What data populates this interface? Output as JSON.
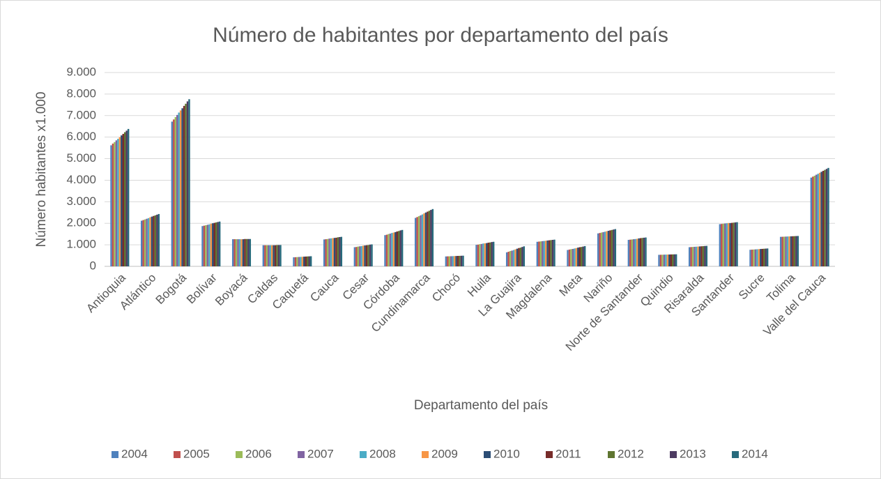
{
  "chart_data": {
    "type": "bar",
    "title": "Número de habitantes por departamento del país",
    "ylabel": "Número habitantes x1.000",
    "xlabel": "Departamento del país",
    "categories": [
      "Antioquia",
      "Atlántico",
      "Bogotá",
      "Bolívar",
      "Boyacá",
      "Caldas",
      "Caquetá",
      "Cauca",
      "Cesar",
      "Córdoba",
      "Cundinamarca",
      "Chocó",
      "Huila",
      "La Guajira",
      "Magdalena",
      "Meta",
      "Nariño",
      "Norte de Santander",
      "Quindio",
      "Risaralda",
      "Santander",
      "Sucre",
      "Tolima",
      "Valle del Cauca"
    ],
    "series": [
      {
        "name": "2004",
        "color": "#4f81bd",
        "values": [
          5620,
          2120,
          6720,
          1870,
          1260,
          980,
          420,
          1250,
          890,
          1450,
          2250,
          460,
          1000,
          650,
          1140,
          760,
          1530,
          1230,
          535,
          890,
          1960,
          770,
          1370,
          4120
        ]
      },
      {
        "name": "2005",
        "color": "#c0504d",
        "values": [
          5700,
          2150,
          6820,
          1890,
          1260,
          980,
          425,
          1260,
          900,
          1470,
          2290,
          464,
          1010,
          680,
          1150,
          780,
          1550,
          1240,
          538,
          896,
          1970,
          776,
          1374,
          4165
        ]
      },
      {
        "name": "2006",
        "color": "#9bbb59",
        "values": [
          5770,
          2180,
          6930,
          1910,
          1260,
          980,
          430,
          1270,
          920,
          1500,
          2330,
          467,
          1030,
          710,
          1160,
          800,
          1570,
          1250,
          540,
          902,
          1980,
          782,
          1378,
          4210
        ]
      },
      {
        "name": "2007",
        "color": "#8064a2",
        "values": [
          5850,
          2210,
          7030,
          1930,
          1260,
          980,
          435,
          1290,
          930,
          1520,
          2370,
          471,
          1040,
          730,
          1170,
          810,
          1590,
          1260,
          543,
          908,
          1990,
          788,
          1382,
          4255
        ]
      },
      {
        "name": "2008",
        "color": "#4bacc6",
        "values": [
          5920,
          2240,
          7140,
          1950,
          1260,
          980,
          440,
          1300,
          940,
          1550,
          2410,
          474,
          1060,
          760,
          1180,
          830,
          1610,
          1270,
          545,
          914,
          2000,
          794,
          1386,
          4300
        ]
      },
      {
        "name": "2009",
        "color": "#f79646",
        "values": [
          6000,
          2280,
          7240,
          1980,
          1260,
          980,
          445,
          1310,
          960,
          1570,
          2460,
          478,
          1070,
          790,
          1190,
          850,
          1630,
          1280,
          548,
          920,
          2010,
          800,
          1390,
          4345
        ]
      },
      {
        "name": "2010",
        "color": "#2c4d75",
        "values": [
          6080,
          2310,
          7340,
          2000,
          1260,
          980,
          450,
          1320,
          970,
          1590,
          2500,
          481,
          1080,
          820,
          1200,
          870,
          1650,
          1300,
          550,
          926,
          2010,
          806,
          1394,
          4390
        ]
      },
      {
        "name": "2011",
        "color": "#772c2a",
        "values": [
          6150,
          2340,
          7450,
          2020,
          1270,
          980,
          455,
          1330,
          980,
          1620,
          2540,
          485,
          1100,
          850,
          1210,
          890,
          1670,
          1310,
          553,
          932,
          2020,
          812,
          1398,
          4435
        ]
      },
      {
        "name": "2012",
        "color": "#5f7530",
        "values": [
          6230,
          2370,
          7550,
          2040,
          1270,
          990,
          460,
          1350,
          990,
          1640,
          2580,
          488,
          1110,
          870,
          1220,
          900,
          1690,
          1320,
          555,
          938,
          2030,
          818,
          1402,
          4480
        ]
      },
      {
        "name": "2013",
        "color": "#4d3b62",
        "values": [
          6300,
          2400,
          7660,
          2060,
          1270,
          990,
          465,
          1360,
          1010,
          1670,
          2620,
          492,
          1130,
          900,
          1230,
          920,
          1710,
          1330,
          558,
          944,
          2040,
          824,
          1406,
          4525
        ]
      },
      {
        "name": "2014",
        "color": "#276a7c",
        "values": [
          6380,
          2430,
          7760,
          2080,
          1270,
          990,
          470,
          1370,
          1020,
          1690,
          2660,
          495,
          1140,
          930,
          1240,
          940,
          1730,
          1340,
          560,
          950,
          2050,
          830,
          1410,
          4570
        ]
      }
    ],
    "ylim": [
      0,
      9000
    ],
    "yticks": [
      0,
      {
        "value": 1000,
        "label": "1.000"
      },
      {
        "value": 2000,
        "label": "2.000"
      },
      {
        "value": 3000,
        "label": "3.000"
      },
      {
        "value": 4000,
        "label": "4.000"
      },
      {
        "value": 5000,
        "label": "5.000"
      },
      {
        "value": 6000,
        "label": "6.000"
      },
      {
        "value": 7000,
        "label": "7.000"
      },
      {
        "value": 8000,
        "label": "8.000"
      },
      {
        "value": 9000,
        "label": "9.000"
      }
    ],
    "grid": true,
    "legend": "bottom"
  }
}
